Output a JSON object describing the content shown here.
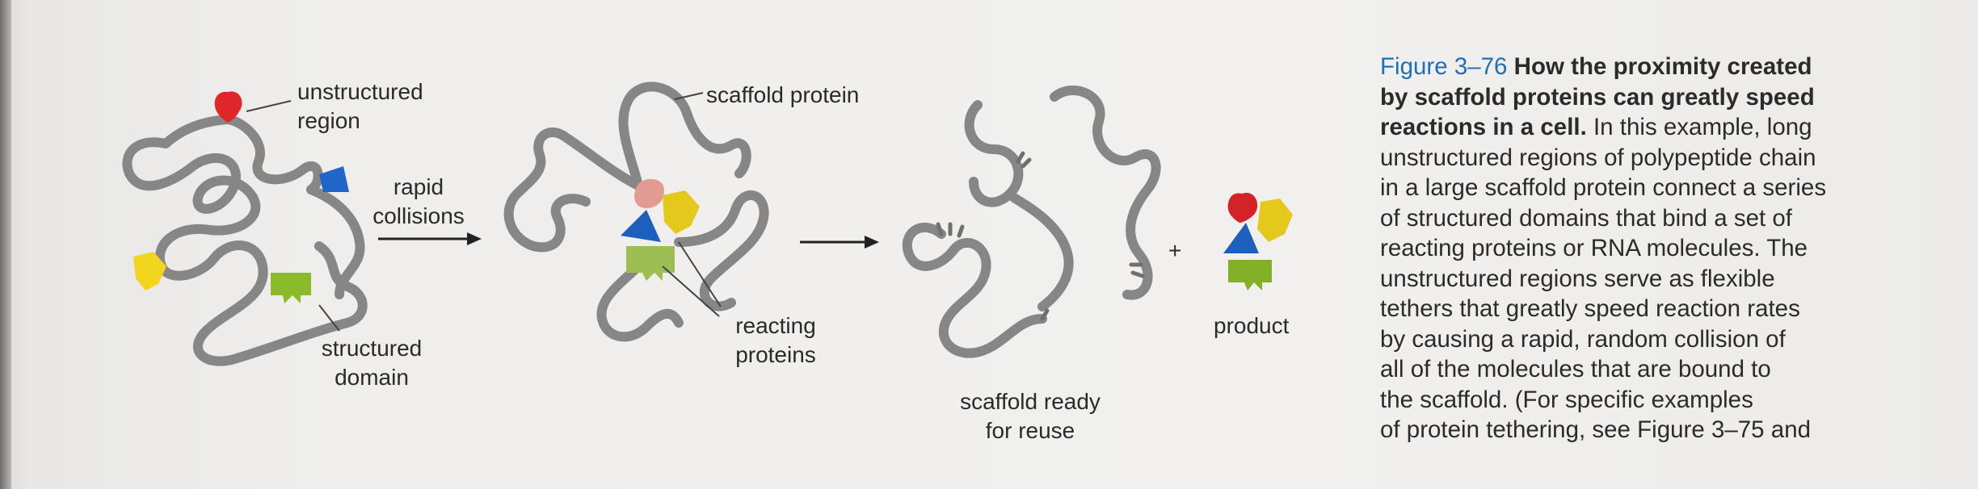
{
  "figure": {
    "labels": {
      "unstructured_region": [
        "unstructured",
        "region"
      ],
      "structured_domain": [
        "structured",
        "domain"
      ],
      "rapid_collisions": [
        "rapid",
        "collisions"
      ],
      "scaffold_protein": "scaffold protein",
      "reacting_proteins": [
        "reacting",
        "proteins"
      ],
      "scaffold_ready": [
        "scaffold ready",
        "for reuse"
      ],
      "plus": "+",
      "product": "product"
    },
    "colors": {
      "chain": "#8f8f8f",
      "red_protein": "#e0262b",
      "blue_protein": "#1f66c8",
      "yellow_protein": "#f2d51e",
      "green_protein": "#8bbb2a",
      "pink_protein": "#f0a49a",
      "caption_label": "#1f6fb5"
    }
  },
  "caption": {
    "label": "Figure 3–76",
    "title_lines": [
      "How the proximity created",
      "by scaffold proteins can greatly speed",
      "reactions in a cell."
    ],
    "body_first": "In this example, long",
    "body_lines": [
      "unstructured regions of polypeptide chain",
      "in a large scaffold protein connect a series",
      "of structured domains that bind a set of",
      "reacting proteins or RNA molecules. The",
      "unstructured regions serve as flexible",
      "tethers that greatly speed reaction rates",
      "by causing a rapid, random collision of",
      "all of the molecules that are bound to",
      "the scaffold. (For specific examples",
      "of protein tethering, see Figure 3–75 and"
    ]
  }
}
